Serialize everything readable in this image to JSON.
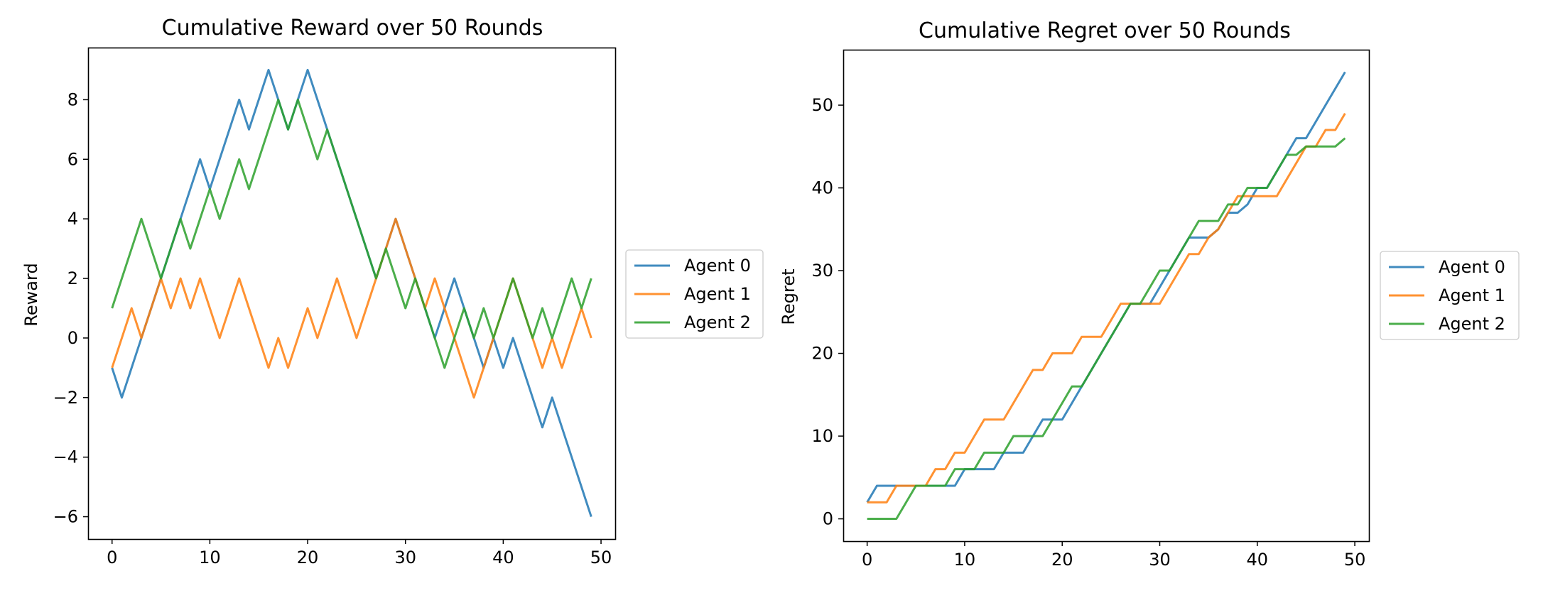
{
  "chart_data": [
    {
      "type": "line",
      "title": "Cumulative Reward over 50 Rounds",
      "xlabel": "",
      "ylabel": "Reward",
      "xlim": [
        -2.45,
        51.45
      ],
      "ylim": [
        -6.75,
        9.75
      ],
      "xticks": [
        0,
        10,
        20,
        30,
        40,
        50
      ],
      "xtick_labels": [
        "0",
        "10",
        "20",
        "30",
        "40",
        "50"
      ],
      "yticks": [
        -6,
        -4,
        -2,
        0,
        2,
        4,
        6,
        8
      ],
      "ytick_labels": [
        "−6",
        "−4",
        "−2",
        "0",
        "2",
        "4",
        "6",
        "8"
      ],
      "grid": false,
      "legend_position": "outside-right",
      "x": [
        0,
        1,
        2,
        3,
        4,
        5,
        6,
        7,
        8,
        9,
        10,
        11,
        12,
        13,
        14,
        15,
        16,
        17,
        18,
        19,
        20,
        21,
        22,
        23,
        24,
        25,
        26,
        27,
        28,
        29,
        30,
        31,
        32,
        33,
        34,
        35,
        36,
        37,
        38,
        39,
        40,
        41,
        42,
        43,
        44,
        45,
        46,
        47,
        48,
        49
      ],
      "series": [
        {
          "name": "Agent 0",
          "color": "#1f77b4",
          "values": [
            -1,
            -2,
            -1,
            0,
            1,
            2,
            3,
            4,
            5,
            6,
            5,
            6,
            7,
            8,
            7,
            8,
            9,
            8,
            7,
            8,
            9,
            8,
            7,
            6,
            5,
            4,
            3,
            2,
            3,
            4,
            3,
            2,
            1,
            0,
            1,
            2,
            1,
            0,
            -1,
            0,
            -1,
            0,
            -1,
            -2,
            -3,
            -2,
            -3,
            -4,
            -5,
            -6
          ]
        },
        {
          "name": "Agent 1",
          "color": "#ff7f0e",
          "values": [
            -1,
            0,
            1,
            0,
            1,
            2,
            1,
            2,
            1,
            2,
            1,
            0,
            1,
            2,
            1,
            0,
            -1,
            0,
            -1,
            0,
            1,
            0,
            1,
            2,
            1,
            0,
            1,
            2,
            3,
            4,
            3,
            2,
            1,
            2,
            1,
            0,
            -1,
            -2,
            -1,
            0,
            1,
            2,
            1,
            0,
            -1,
            0,
            -1,
            0,
            1,
            0
          ]
        },
        {
          "name": "Agent 2",
          "color": "#2ca02c",
          "values": [
            1,
            2,
            3,
            4,
            3,
            2,
            3,
            4,
            3,
            4,
            5,
            4,
            5,
            6,
            5,
            6,
            7,
            8,
            7,
            8,
            7,
            6,
            7,
            6,
            5,
            4,
            3,
            2,
            3,
            2,
            1,
            2,
            1,
            0,
            -1,
            0,
            1,
            0,
            1,
            0,
            1,
            2,
            1,
            0,
            1,
            0,
            1,
            2,
            1,
            2
          ]
        }
      ]
    },
    {
      "type": "line",
      "title": "Cumulative Regret over 50 Rounds",
      "xlabel": "",
      "ylabel": "Regret",
      "xlim": [
        -2.45,
        51.45
      ],
      "ylim": [
        -2.7,
        56.7
      ],
      "xticks": [
        0,
        10,
        20,
        30,
        40,
        50
      ],
      "xtick_labels": [
        "0",
        "10",
        "20",
        "30",
        "40",
        "50"
      ],
      "yticks": [
        0,
        10,
        20,
        30,
        40,
        50
      ],
      "ytick_labels": [
        "0",
        "10",
        "20",
        "30",
        "40",
        "50"
      ],
      "grid": false,
      "legend_position": "outside-right",
      "x": [
        0,
        1,
        2,
        3,
        4,
        5,
        6,
        7,
        8,
        9,
        10,
        11,
        12,
        13,
        14,
        15,
        16,
        17,
        18,
        19,
        20,
        21,
        22,
        23,
        24,
        25,
        26,
        27,
        28,
        29,
        30,
        31,
        32,
        33,
        34,
        35,
        36,
        37,
        38,
        39,
        40,
        41,
        42,
        43,
        44,
        45,
        46,
        47,
        48,
        49
      ],
      "series": [
        {
          "name": "Agent 0",
          "color": "#1f77b4",
          "values": [
            2,
            4,
            4,
            4,
            4,
            4,
            4,
            4,
            4,
            4,
            6,
            6,
            6,
            6,
            8,
            8,
            8,
            10,
            12,
            12,
            12,
            14,
            16,
            18,
            20,
            22,
            24,
            26,
            26,
            26,
            28,
            30,
            32,
            34,
            34,
            34,
            35,
            37,
            37,
            38,
            40,
            40,
            42,
            44,
            46,
            46,
            48,
            50,
            52,
            54
          ]
        },
        {
          "name": "Agent 1",
          "color": "#ff7f0e",
          "values": [
            2,
            2,
            2,
            4,
            4,
            4,
            4,
            6,
            6,
            8,
            8,
            10,
            12,
            12,
            12,
            14,
            16,
            18,
            18,
            20,
            20,
            20,
            22,
            22,
            22,
            24,
            26,
            26,
            26,
            26,
            26,
            28,
            30,
            32,
            32,
            34,
            35,
            37,
            39,
            39,
            39,
            39,
            39,
            41,
            43,
            45,
            45,
            47,
            47,
            49
          ]
        },
        {
          "name": "Agent 2",
          "color": "#2ca02c",
          "values": [
            0,
            0,
            0,
            0,
            2,
            4,
            4,
            4,
            4,
            6,
            6,
            6,
            8,
            8,
            8,
            10,
            10,
            10,
            10,
            12,
            14,
            16,
            16,
            18,
            20,
            22,
            24,
            26,
            26,
            28,
            30,
            30,
            32,
            34,
            36,
            36,
            36,
            38,
            38,
            40,
            40,
            40,
            42,
            44,
            44,
            45,
            45,
            45,
            45,
            46
          ]
        }
      ]
    }
  ]
}
